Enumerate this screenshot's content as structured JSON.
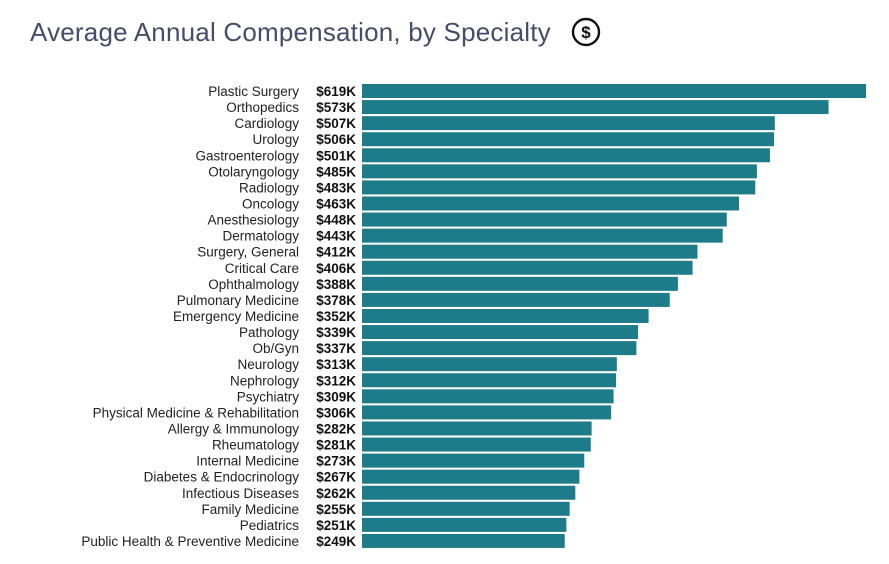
{
  "chart_data": {
    "type": "bar",
    "orientation": "horizontal",
    "title": "Average Annual Compensation, by Specialty",
    "title_icon": "dollar-circle-icon",
    "bar_color": "#1e7b8a",
    "title_color": "#4a4a6a",
    "unit_prefix": "$",
    "unit_suffix": "K",
    "categories": [
      "Plastic Surgery",
      "Orthopedics",
      "Cardiology",
      "Urology",
      "Gastroenterology",
      "Otolaryngology",
      "Radiology",
      "Oncology",
      "Anesthesiology",
      "Dermatology",
      "Surgery, General",
      "Critical Care",
      "Ophthalmology",
      "Pulmonary Medicine",
      "Emergency Medicine",
      "Pathology",
      "Ob/Gyn",
      "Neurology",
      "Nephrology",
      "Psychiatry",
      "Physical Medicine & Rehabilitation",
      "Allergy & Immunology",
      "Rheumatology",
      "Internal Medicine",
      "Diabetes & Endocrinology",
      "Infectious Diseases",
      "Family Medicine",
      "Pediatrics",
      "Public Health & Preventive Medicine"
    ],
    "values": [
      619,
      573,
      507,
      506,
      501,
      485,
      483,
      463,
      448,
      443,
      412,
      406,
      388,
      378,
      352,
      339,
      337,
      313,
      312,
      309,
      306,
      282,
      281,
      273,
      267,
      262,
      255,
      251,
      249
    ],
    "value_labels": [
      "$619K",
      "$573K",
      "$507K",
      "$506K",
      "$501K",
      "$485K",
      "$483K",
      "$463K",
      "$448K",
      "$443K",
      "$412K",
      "$406K",
      "$388K",
      "$378K",
      "$352K",
      "$339K",
      "$337K",
      "$313K",
      "$312K",
      "$309K",
      "$306K",
      "$282K",
      "$281K",
      "$273K",
      "$267K",
      "$262K",
      "$255K",
      "$251K",
      "$249K"
    ],
    "xlim": [
      0,
      619
    ],
    "grid": false,
    "legend": "none"
  }
}
